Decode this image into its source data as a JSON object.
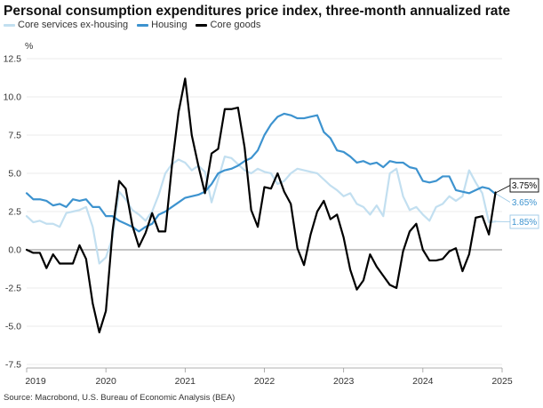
{
  "colors": {
    "core_services": "#c2dff0",
    "housing": "#3d93cf",
    "core_goods": "#000000",
    "grid": "#e4e4e4",
    "zero": "#888888"
  },
  "chart_data": {
    "type": "line",
    "title": "Personal consumption expenditures price index, three-month annualized rate",
    "ylabel": "%",
    "ylim": [
      -7.5,
      12.5
    ],
    "yticks": [
      12.5,
      10.0,
      7.5,
      5.0,
      2.5,
      0.0,
      -2.5,
      -5.0,
      -7.5
    ],
    "ytick_labels": [
      "12.5",
      "10.0",
      "7.5",
      "5.0",
      "2.5",
      "0.0",
      "-2.5",
      "-5.0",
      "-7.5"
    ],
    "xlim": [
      "2019-01",
      "2025-01"
    ],
    "xticks": [
      "2019",
      "2020",
      "2021",
      "2022",
      "2023",
      "2024",
      "2025"
    ],
    "grid": true,
    "legend_position": "top-left",
    "x": [
      "2019-01",
      "2019-02",
      "2019-03",
      "2019-04",
      "2019-05",
      "2019-06",
      "2019-07",
      "2019-08",
      "2019-09",
      "2019-10",
      "2019-11",
      "2019-12",
      "2020-01",
      "2020-02",
      "2020-03",
      "2020-04",
      "2020-05",
      "2020-06",
      "2020-07",
      "2020-08",
      "2020-09",
      "2020-10",
      "2020-11",
      "2020-12",
      "2021-01",
      "2021-02",
      "2021-03",
      "2021-04",
      "2021-05",
      "2021-06",
      "2021-07",
      "2021-08",
      "2021-09",
      "2021-10",
      "2021-11",
      "2021-12",
      "2022-01",
      "2022-02",
      "2022-03",
      "2022-04",
      "2022-05",
      "2022-06",
      "2022-07",
      "2022-08",
      "2022-09",
      "2022-10",
      "2022-11",
      "2022-12",
      "2023-01",
      "2023-02",
      "2023-03",
      "2023-04",
      "2023-05",
      "2023-06",
      "2023-07",
      "2023-08",
      "2023-09",
      "2023-10",
      "2023-11",
      "2023-12",
      "2024-01",
      "2024-02",
      "2024-03",
      "2024-04",
      "2024-05",
      "2024-06",
      "2024-07",
      "2024-08",
      "2024-09",
      "2024-10",
      "2024-11",
      "2024-12"
    ],
    "series": [
      {
        "name": "Core services ex-housing",
        "color": "#c2dff0",
        "end_label": "1.85%",
        "values": [
          2.2,
          1.8,
          1.9,
          1.7,
          1.7,
          1.5,
          2.4,
          2.5,
          2.6,
          2.8,
          1.5,
          -0.9,
          -0.5,
          0.8,
          3.8,
          3.3,
          2.6,
          2.3,
          1.9,
          2.5,
          3.6,
          5.0,
          5.6,
          5.9,
          5.7,
          5.2,
          5.5,
          5.1,
          3.1,
          4.6,
          6.1,
          6.0,
          5.6,
          5.2,
          5.0,
          5.3,
          5.1,
          5.0,
          4.3,
          4.5,
          5.0,
          5.3,
          5.2,
          5.1,
          5.0,
          4.6,
          4.2,
          3.9,
          3.5,
          3.7,
          3.0,
          2.8,
          2.3,
          2.9,
          2.2,
          5.0,
          5.3,
          3.5,
          2.6,
          2.8,
          2.3,
          1.9,
          2.8,
          3.0,
          3.5,
          3.2,
          3.5,
          5.2,
          4.4,
          3.7,
          1.8,
          1.85
        ]
      },
      {
        "name": "Housing",
        "color": "#3d93cf",
        "end_label": "3.65%",
        "values": [
          3.7,
          3.3,
          3.3,
          3.2,
          2.9,
          3.0,
          2.8,
          3.3,
          3.2,
          3.3,
          2.8,
          2.8,
          2.2,
          2.2,
          1.9,
          1.7,
          1.5,
          1.2,
          1.5,
          1.7,
          2.3,
          2.5,
          2.8,
          3.1,
          3.4,
          3.5,
          3.6,
          3.8,
          4.3,
          5.0,
          5.2,
          5.3,
          5.5,
          5.8,
          6.0,
          6.5,
          7.5,
          8.2,
          8.7,
          8.9,
          8.8,
          8.6,
          8.6,
          8.7,
          8.8,
          7.7,
          7.3,
          6.5,
          6.4,
          6.1,
          5.7,
          5.8,
          5.6,
          5.7,
          5.4,
          5.8,
          5.7,
          5.7,
          5.4,
          5.3,
          4.5,
          4.4,
          4.5,
          4.8,
          4.8,
          3.9,
          3.8,
          3.7,
          3.9,
          4.1,
          4.0,
          3.65
        ]
      },
      {
        "name": "Core goods",
        "color": "#000000",
        "end_label": "3.75%",
        "values": [
          0.0,
          -0.2,
          -0.2,
          -1.2,
          -0.3,
          -0.9,
          -0.9,
          -0.9,
          0.3,
          -0.6,
          -3.5,
          -5.4,
          -4.0,
          1.2,
          4.5,
          4.0,
          1.6,
          0.2,
          1.1,
          2.4,
          1.2,
          1.2,
          5.5,
          9.0,
          11.2,
          7.5,
          5.5,
          3.7,
          6.3,
          6.6,
          9.2,
          9.2,
          9.3,
          6.7,
          2.6,
          1.5,
          4.1,
          4.0,
          5.0,
          3.8,
          3.0,
          0.1,
          -1.0,
          1.0,
          2.5,
          3.2,
          2.0,
          2.3,
          0.8,
          -1.3,
          -2.6,
          -2.0,
          -0.3,
          -1.1,
          -1.7,
          -2.3,
          -2.5,
          -0.1,
          1.2,
          1.7,
          0.0,
          -0.7,
          -0.7,
          -0.6,
          -0.1,
          0.1,
          -1.4,
          -0.3,
          2.1,
          2.2,
          1.0,
          3.75
        ]
      }
    ],
    "source": "Source: Macrobond, U.S. Bureau of Economic Analysis (BEA)"
  }
}
